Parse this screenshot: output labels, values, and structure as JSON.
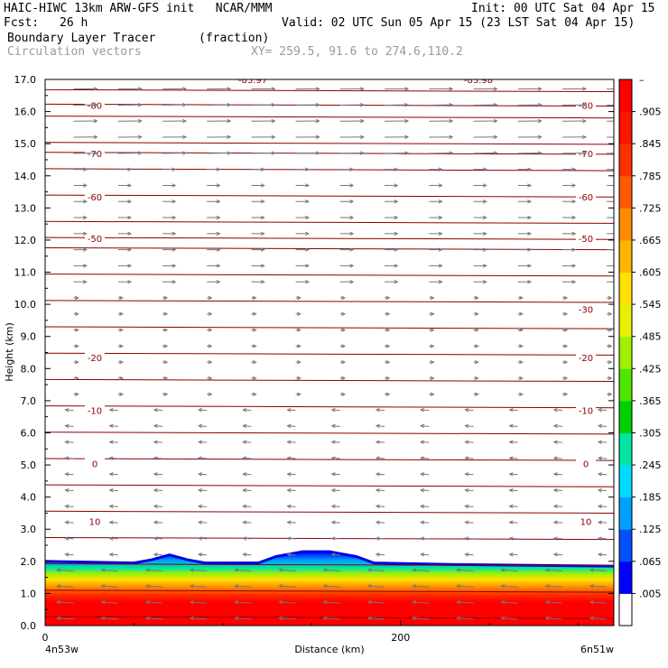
{
  "header": {
    "model_line": "HAIC-HIWC 13km ARW-GFS init   NCAR/MMM",
    "init_line": "Init: 00 UTC Sat 04 Apr 15",
    "fcst_label": "Fcst:",
    "fcst_value": "26 h",
    "valid_line": "Valid: 02 UTC Sun 05 Apr 15 (23 LST Sat 04 Apr 15)",
    "field_name": "Boundary Layer Tracer",
    "field_units": "(fraction)",
    "overlay_name": "Circulation vectors",
    "xy_line": "XY= 259.5, 91.6 to 274.6,110.2"
  },
  "chart_data": {
    "type": "heatmap",
    "xlabel": "Distance (km)",
    "ylabel": "Height (km)",
    "xlim": [
      0,
      320
    ],
    "ylim": [
      0,
      17
    ],
    "x_ticks": [
      {
        "value": 0,
        "label": "0"
      },
      {
        "value": 200,
        "label": "200"
      }
    ],
    "y_ticks": [
      {
        "value": 0,
        "label": "0.0"
      },
      {
        "value": 1,
        "label": "1.0"
      },
      {
        "value": 2,
        "label": "2.0"
      },
      {
        "value": 3,
        "label": "3.0"
      },
      {
        "value": 4,
        "label": "4.0"
      },
      {
        "value": 5,
        "label": "5.0"
      },
      {
        "value": 6,
        "label": "6.0"
      },
      {
        "value": 7,
        "label": "7.0"
      },
      {
        "value": 8,
        "label": "8.0"
      },
      {
        "value": 9,
        "label": "9.0"
      },
      {
        "value": 10,
        "label": "10.0"
      },
      {
        "value": 11,
        "label": "11.0"
      },
      {
        "value": 12,
        "label": "12.0"
      },
      {
        "value": 13,
        "label": "13.0"
      },
      {
        "value": 14,
        "label": "14.0"
      },
      {
        "value": 15,
        "label": "15.0"
      },
      {
        "value": 16,
        "label": "16.0"
      },
      {
        "value": 17,
        "label": "17.0"
      }
    ],
    "endpoint_left": "4n53w",
    "endpoint_right": "6n51w",
    "boundary_layer_top_km": [
      [
        0,
        2.0
      ],
      [
        50,
        1.95
      ],
      [
        60,
        2.05
      ],
      [
        70,
        2.2
      ],
      [
        80,
        2.05
      ],
      [
        90,
        1.95
      ],
      [
        120,
        1.95
      ],
      [
        130,
        2.15
      ],
      [
        145,
        2.3
      ],
      [
        160,
        2.3
      ],
      [
        175,
        2.15
      ],
      [
        185,
        1.95
      ],
      [
        230,
        1.9
      ],
      [
        320,
        1.85
      ]
    ],
    "colorbar": {
      "levels": [
        ".005",
        ".065",
        ".125",
        ".185",
        ".245",
        ".305",
        ".365",
        ".425",
        ".485",
        ".545",
        ".605",
        ".665",
        ".725",
        ".785",
        ".845",
        ".905"
      ],
      "colors": [
        "#ffffff",
        "#0000ff",
        "#0050ff",
        "#00a0ff",
        "#00dcff",
        "#00e6a0",
        "#00d000",
        "#50e600",
        "#a0f000",
        "#e6f000",
        "#ffe000",
        "#ffb400",
        "#ff8c00",
        "#ff5a00",
        "#ff3000",
        "#ff1400",
        "#ff0000"
      ]
    },
    "temperature_contours": {
      "color": "#8b0000",
      "levels_c": [
        10,
        0,
        -10,
        -20,
        -30,
        -40,
        -50,
        -60,
        -70,
        -80
      ],
      "labels": [
        {
          "level": 10,
          "text": "10",
          "height_km": 3.25,
          "side": "both"
        },
        {
          "level": 0,
          "text": "0",
          "height_km": 5.05,
          "side": "both"
        },
        {
          "level": -10,
          "text": "-10",
          "height_km": 6.7,
          "side": "both"
        },
        {
          "level": -20,
          "text": "-20",
          "height_km": 8.35,
          "side": "both"
        },
        {
          "level": -30,
          "text": "-30",
          "height_km": 9.85,
          "side": "right"
        },
        {
          "level": -50,
          "text": "-50",
          "height_km": 12.05,
          "side": "both"
        },
        {
          "level": -60,
          "text": "-60",
          "height_km": 13.35,
          "side": "both"
        },
        {
          "level": -70,
          "text": "-70",
          "height_km": 14.7,
          "side": "both"
        },
        {
          "level": -80,
          "text": "-80",
          "height_km": 16.2,
          "side": "both"
        }
      ],
      "top_labels": [
        "-83.97",
        "-83.98"
      ]
    },
    "vectors": {
      "color": "#777777",
      "description_levels": [
        {
          "height_range_km": [
            14.5,
            17
          ],
          "u": 1.0,
          "w": 0.05
        },
        {
          "height_range_km": [
            10.5,
            14.5
          ],
          "u": 0.55,
          "w": 0.0
        },
        {
          "height_range_km": [
            7,
            10.5
          ],
          "u": 0.2,
          "w": 0.0
        },
        {
          "height_range_km": [
            2,
            7
          ],
          "u": -0.35,
          "w": 0.1
        },
        {
          "height_range_km": [
            0,
            2
          ],
          "u": -0.7,
          "w": 0.2
        }
      ]
    }
  }
}
